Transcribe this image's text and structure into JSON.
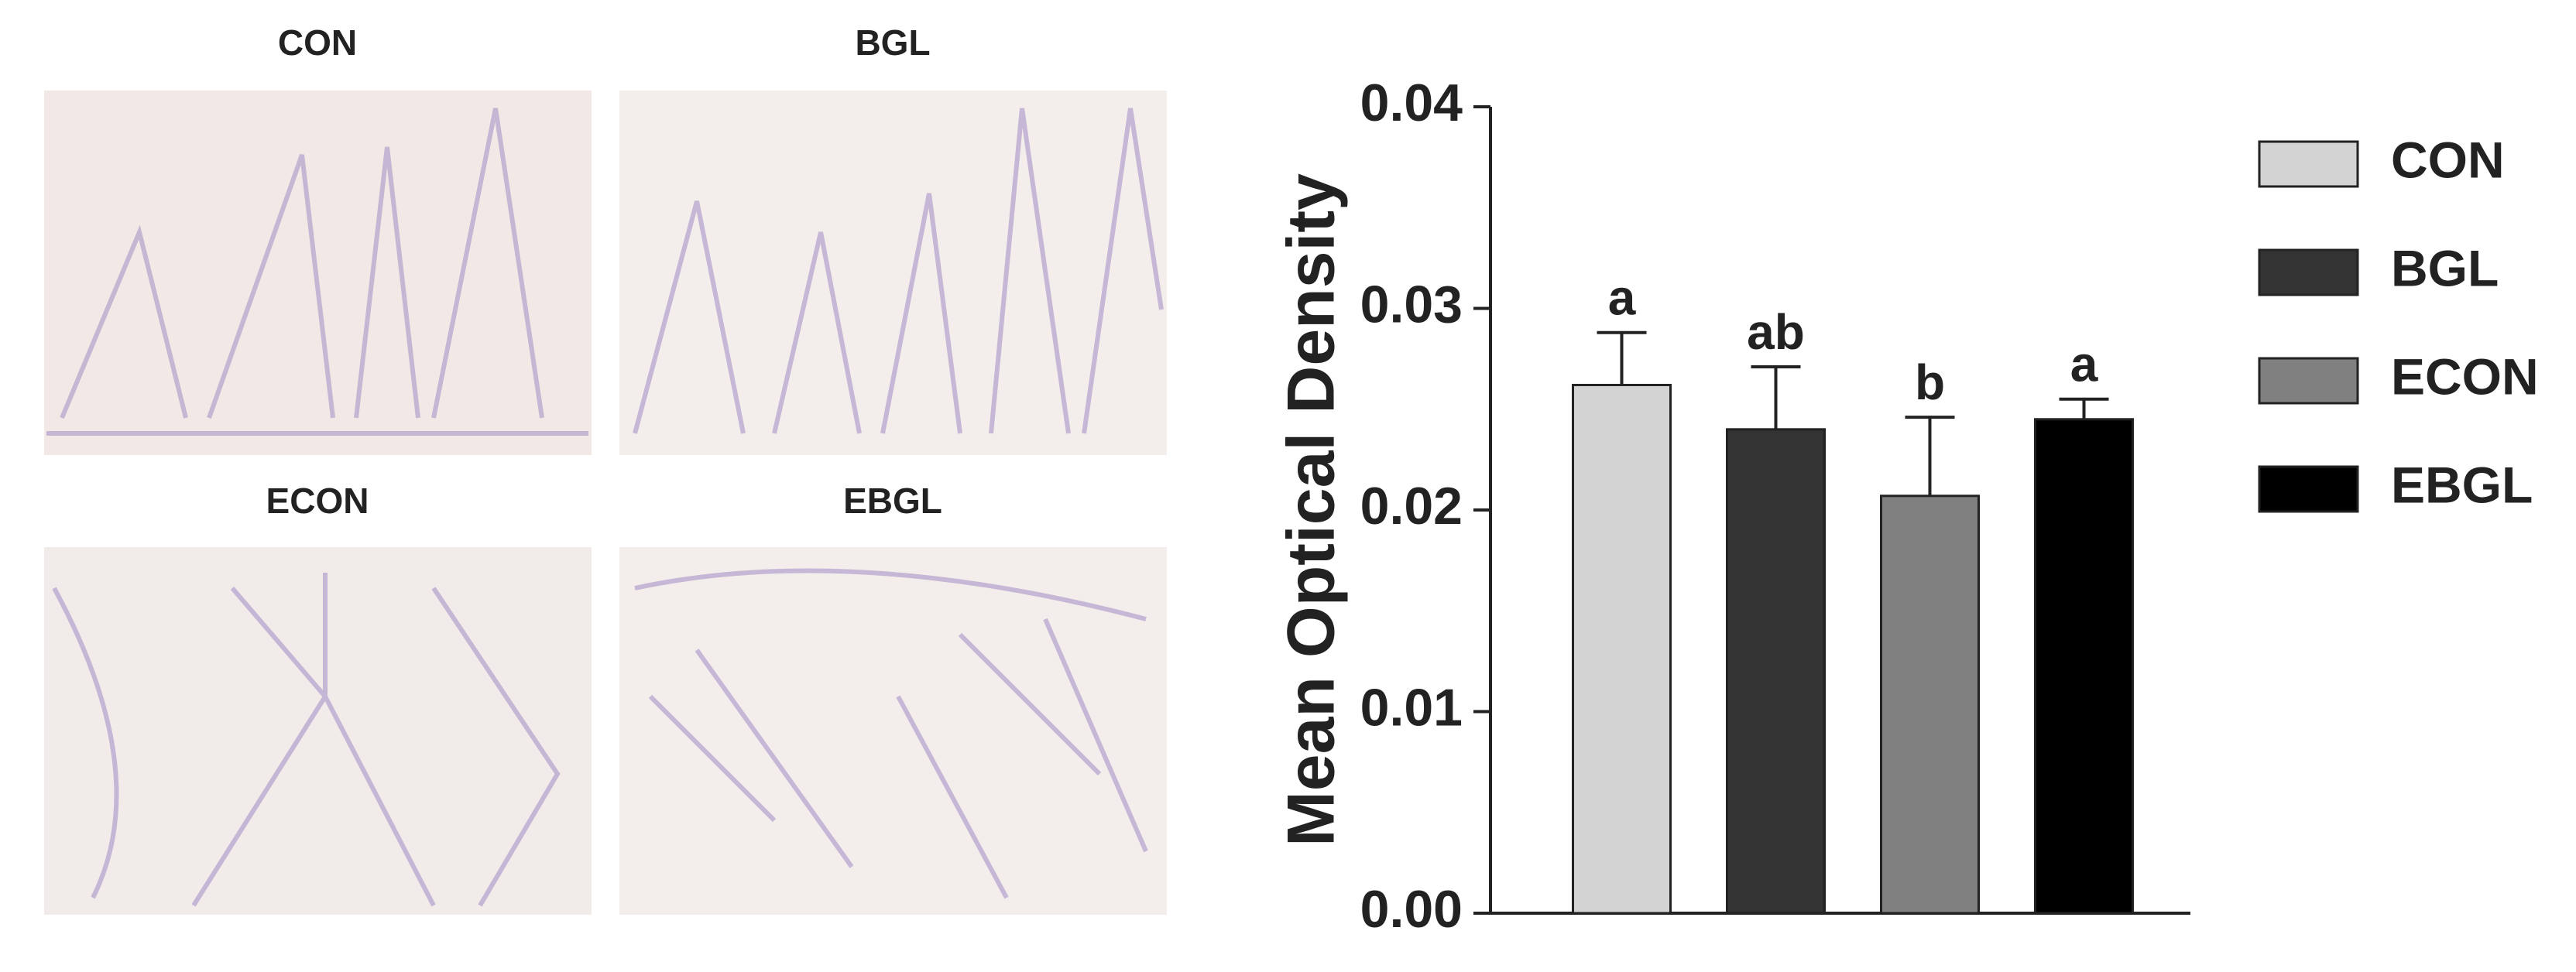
{
  "panels": [
    "CON",
    "BGL",
    "ECON",
    "EBGL"
  ],
  "chart_data": {
    "type": "bar",
    "ylabel": "Mean Optical Density",
    "categories": [
      "CON",
      "BGL",
      "ECON",
      "EBGL"
    ],
    "values": [
      0.0262,
      0.024,
      0.0207,
      0.0245
    ],
    "errors": [
      0.0026,
      0.0031,
      0.0039,
      0.001
    ],
    "letters": [
      "a",
      "ab",
      "b",
      "a"
    ],
    "colors": [
      "#d3d3d3",
      "#333333",
      "#808080",
      "#000000"
    ],
    "ylim": [
      0,
      0.04
    ],
    "yticks": [
      {
        "value": 0,
        "label": "0.00"
      },
      0.01,
      0.02,
      0.03,
      0.04
    ],
    "legend": "right"
  }
}
